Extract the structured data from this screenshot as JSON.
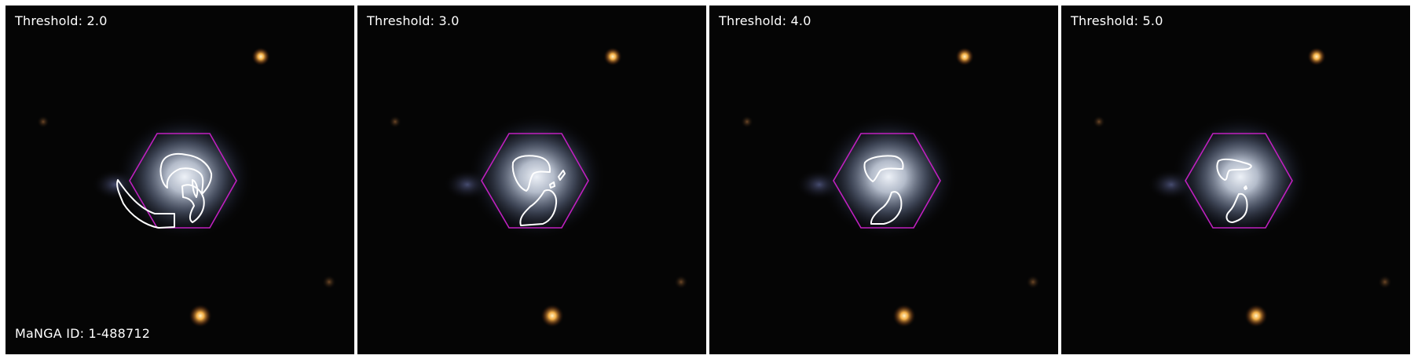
{
  "figure": {
    "manga_id": "MaNGA ID: 1-488712",
    "panels": [
      {
        "threshold": "Threshold: 2.0",
        "contour_level": 2.0
      },
      {
        "threshold": "Threshold: 3.0",
        "contour_level": 3.0
      },
      {
        "threshold": "Threshold: 4.0",
        "contour_level": 4.0
      },
      {
        "threshold": "Threshold: 5.0",
        "contour_level": 5.0
      }
    ],
    "colors": {
      "background": "#050505",
      "contour": "#ffffff",
      "ifu_hexagon": "#c020c0",
      "star": "#ffb84a",
      "galaxy_core": "#dce3ee"
    }
  }
}
